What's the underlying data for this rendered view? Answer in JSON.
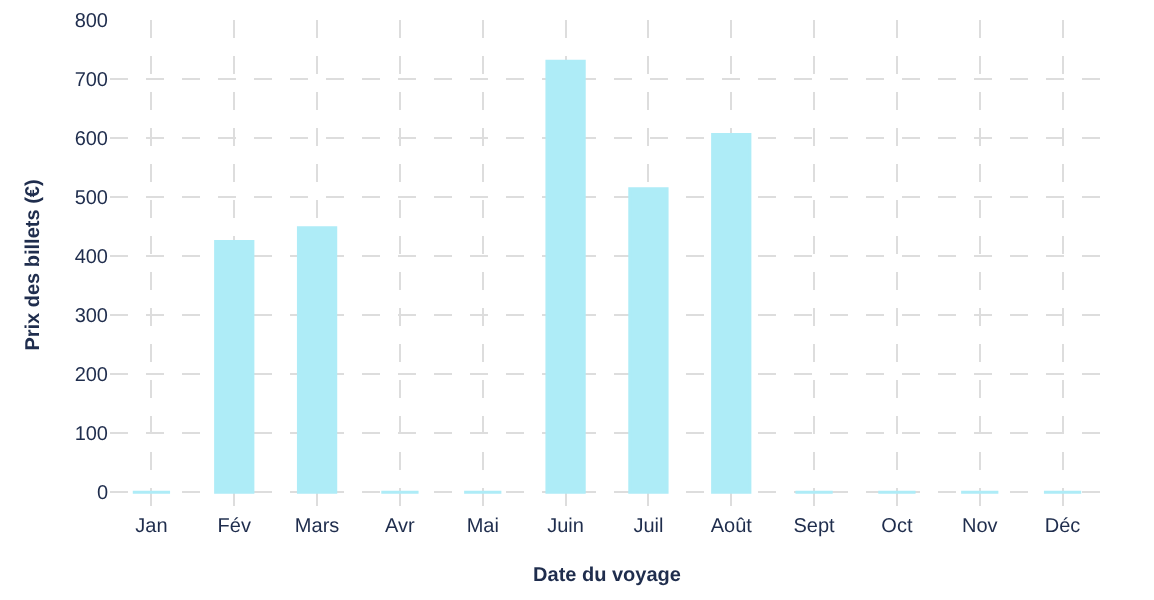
{
  "chart_data": {
    "type": "bar",
    "xlabel": "Date du voyage",
    "ylabel": "Prix des billets (€)",
    "categories": [
      "Jan",
      "Fév",
      "Mars",
      "Avr",
      "Mai",
      "Juin",
      "Juil",
      "Août",
      "Sept",
      "Oct",
      "Nov",
      "Déc"
    ],
    "values": [
      0,
      425,
      448,
      0,
      0,
      730,
      514,
      606,
      0,
      0,
      0,
      0
    ],
    "color": "#aeecf7",
    "ylim": [
      -30,
      800
    ],
    "yticks": [
      0,
      100,
      200,
      300,
      400,
      500,
      600,
      700,
      800
    ],
    "grid": true
  }
}
